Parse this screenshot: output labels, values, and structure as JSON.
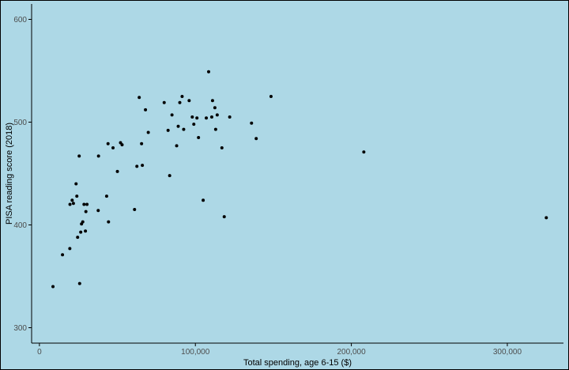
{
  "colors": {
    "background": "#add8e6",
    "point": "#000000",
    "axis": "#000000",
    "tick_label": "#4d4d4d"
  },
  "chart_data": {
    "type": "scatter",
    "xlabel": "Total spending, age 6-15 ($)",
    "ylabel": "PISA reading score (2018)",
    "xlim": [
      -5000,
      336000
    ],
    "ylim": [
      285,
      615
    ],
    "x_ticks": [
      0,
      100000,
      200000,
      300000
    ],
    "x_tick_labels": [
      "0",
      "100,000",
      "200,000",
      "300,000"
    ],
    "y_ticks": [
      300,
      400,
      500,
      600
    ],
    "y_tick_labels": [
      "300",
      "400",
      "500",
      "600"
    ],
    "grid": false,
    "legend": "none",
    "points": [
      [
        8700,
        340
      ],
      [
        14800,
        371
      ],
      [
        19500,
        377
      ],
      [
        19600,
        420
      ],
      [
        21000,
        424
      ],
      [
        21800,
        421
      ],
      [
        23500,
        440
      ],
      [
        24000,
        428
      ],
      [
        24500,
        388
      ],
      [
        25800,
        343
      ],
      [
        25500,
        467
      ],
      [
        26500,
        393
      ],
      [
        27000,
        401
      ],
      [
        27800,
        403
      ],
      [
        28600,
        420
      ],
      [
        29500,
        394
      ],
      [
        29800,
        413
      ],
      [
        30500,
        420
      ],
      [
        37700,
        414
      ],
      [
        37900,
        467
      ],
      [
        43100,
        428
      ],
      [
        44000,
        479
      ],
      [
        44300,
        403
      ],
      [
        47200,
        475
      ],
      [
        50000,
        452
      ],
      [
        52000,
        480
      ],
      [
        53000,
        478
      ],
      [
        61000,
        415
      ],
      [
        62500,
        457
      ],
      [
        64000,
        524
      ],
      [
        65500,
        479
      ],
      [
        66000,
        458
      ],
      [
        68000,
        512
      ],
      [
        69800,
        490
      ],
      [
        80000,
        519
      ],
      [
        82500,
        492
      ],
      [
        83500,
        448
      ],
      [
        85000,
        507
      ],
      [
        88000,
        477
      ],
      [
        89000,
        496
      ],
      [
        90000,
        519
      ],
      [
        91500,
        525
      ],
      [
        92500,
        493
      ],
      [
        96000,
        521
      ],
      [
        98000,
        505
      ],
      [
        99000,
        498
      ],
      [
        101000,
        504
      ],
      [
        102000,
        485
      ],
      [
        105000,
        424
      ],
      [
        107000,
        504
      ],
      [
        108500,
        549
      ],
      [
        110500,
        505
      ],
      [
        111000,
        521
      ],
      [
        112500,
        514
      ],
      [
        113000,
        493
      ],
      [
        114000,
        507
      ],
      [
        117000,
        475
      ],
      [
        118500,
        408
      ],
      [
        122000,
        505
      ],
      [
        136000,
        499
      ],
      [
        139000,
        484
      ],
      [
        148500,
        525
      ],
      [
        208000,
        471
      ],
      [
        325000,
        407
      ]
    ]
  }
}
